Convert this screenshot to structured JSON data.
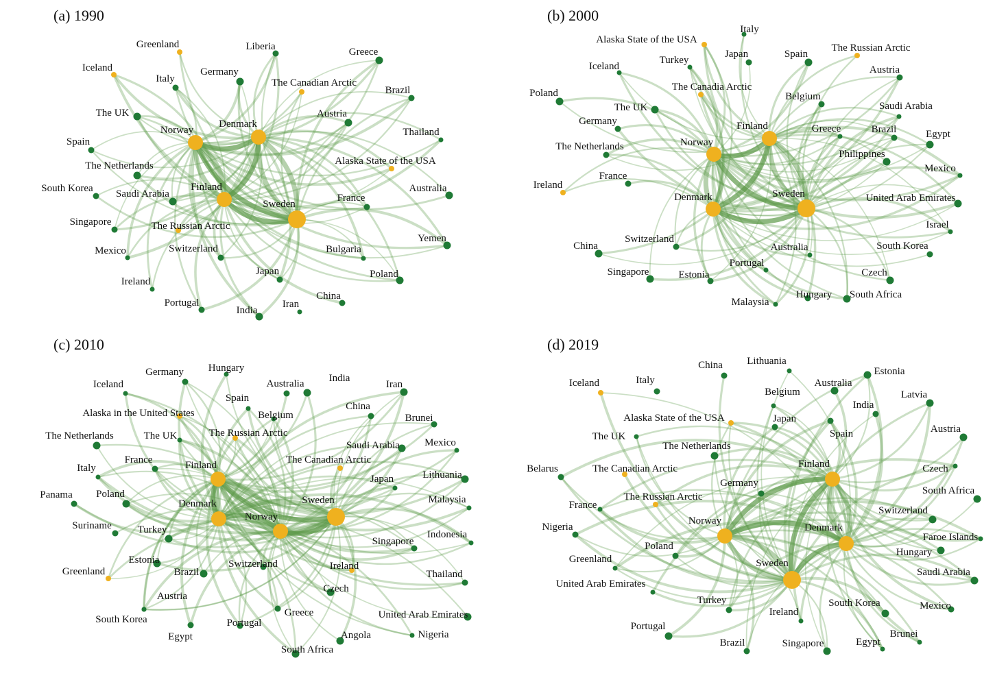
{
  "figure": {
    "colors": {
      "edge": "#5e9a4a",
      "node_green": "#1f7a35",
      "node_gold": "#efb11f"
    },
    "panels": [
      {
        "title": "(a)  1990",
        "hubs": [
          "Norway",
          "Denmark",
          "Finland",
          "Sweden"
        ],
        "nodes": [
          {
            "label": "Greenland",
            "color": "gold"
          },
          {
            "label": "Liberia",
            "color": "green"
          },
          {
            "label": "Greece",
            "color": "green"
          },
          {
            "label": "Iceland",
            "color": "gold"
          },
          {
            "label": "Italy",
            "color": "green"
          },
          {
            "label": "Germany",
            "color": "green"
          },
          {
            "label": "The Canadian Arctic",
            "color": "gold"
          },
          {
            "label": "Brazil",
            "color": "green"
          },
          {
            "label": "The UK",
            "color": "green"
          },
          {
            "label": "Norway",
            "color": "gold"
          },
          {
            "label": "Denmark",
            "color": "gold"
          },
          {
            "label": "Austria",
            "color": "green"
          },
          {
            "label": "Thailand",
            "color": "green"
          },
          {
            "label": "Spain",
            "color": "green"
          },
          {
            "label": "The Netherlands",
            "color": "green"
          },
          {
            "label": "Alaska State of the USA",
            "color": "gold"
          },
          {
            "label": "South Korea",
            "color": "green"
          },
          {
            "label": "Saudi Arabia",
            "color": "green"
          },
          {
            "label": "Finland",
            "color": "gold"
          },
          {
            "label": "France",
            "color": "green"
          },
          {
            "label": "Australia",
            "color": "green"
          },
          {
            "label": "Sweden",
            "color": "gold"
          },
          {
            "label": "Singapore",
            "color": "green"
          },
          {
            "label": "The Russian Arctic",
            "color": "gold"
          },
          {
            "label": "Mexico",
            "color": "green"
          },
          {
            "label": "Switzerland",
            "color": "green"
          },
          {
            "label": "Yemen",
            "color": "green"
          },
          {
            "label": "Bulgaria",
            "color": "green"
          },
          {
            "label": "Japan",
            "color": "green"
          },
          {
            "label": "Poland",
            "color": "green"
          },
          {
            "label": "Ireland",
            "color": "green"
          },
          {
            "label": "Portugal",
            "color": "green"
          },
          {
            "label": "India",
            "color": "green"
          },
          {
            "label": "Iran",
            "color": "green"
          },
          {
            "label": "China",
            "color": "green"
          }
        ]
      },
      {
        "title": "(b) 2000",
        "hubs": [
          "Norway",
          "Finland",
          "Denmark",
          "Sweden"
        ],
        "nodes": [
          {
            "label": "Italy",
            "color": "green"
          },
          {
            "label": "Alaska State of the USA",
            "color": "gold"
          },
          {
            "label": "The Russian Arctic",
            "color": "gold"
          },
          {
            "label": "Turkey",
            "color": "green"
          },
          {
            "label": "Japan",
            "color": "green"
          },
          {
            "label": "Spain",
            "color": "green"
          },
          {
            "label": "Iceland",
            "color": "green"
          },
          {
            "label": "Austria",
            "color": "green"
          },
          {
            "label": "Poland",
            "color": "green"
          },
          {
            "label": "The Canadia Arctic",
            "color": "gold"
          },
          {
            "label": "Belgium",
            "color": "green"
          },
          {
            "label": "The UK",
            "color": "green"
          },
          {
            "label": "Saudi Arabia",
            "color": "green"
          },
          {
            "label": "Germany",
            "color": "green"
          },
          {
            "label": "Finland",
            "color": "gold"
          },
          {
            "label": "Greece",
            "color": "green"
          },
          {
            "label": "Brazil",
            "color": "green"
          },
          {
            "label": "Egypt",
            "color": "green"
          },
          {
            "label": "Norway",
            "color": "gold"
          },
          {
            "label": "The Netherlands",
            "color": "green"
          },
          {
            "label": "Philippines",
            "color": "green"
          },
          {
            "label": "Mexico",
            "color": "green"
          },
          {
            "label": "France",
            "color": "green"
          },
          {
            "label": "Ireland",
            "color": "gold"
          },
          {
            "label": "Denmark",
            "color": "gold"
          },
          {
            "label": "Sweden",
            "color": "gold"
          },
          {
            "label": "United Arab Emirates",
            "color": "green"
          },
          {
            "label": "Israel",
            "color": "green"
          },
          {
            "label": "Switzerland",
            "color": "green"
          },
          {
            "label": "China",
            "color": "green"
          },
          {
            "label": "Australia",
            "color": "green"
          },
          {
            "label": "South Korea",
            "color": "green"
          },
          {
            "label": "Singapore",
            "color": "green"
          },
          {
            "label": "Portugal",
            "color": "green"
          },
          {
            "label": "Estonia",
            "color": "green"
          },
          {
            "label": "Czech",
            "color": "green"
          },
          {
            "label": "Malaysia",
            "color": "green"
          },
          {
            "label": "Hungary",
            "color": "green"
          },
          {
            "label": "South Africa",
            "color": "green"
          }
        ]
      },
      {
        "title": "(c) 2010",
        "hubs": [
          "Finland",
          "Denmark",
          "Norway",
          "Sweden"
        ],
        "nodes": [
          {
            "label": "Hungary",
            "color": "green"
          },
          {
            "label": "Germany",
            "color": "green"
          },
          {
            "label": "India",
            "color": "green"
          },
          {
            "label": "Iceland",
            "color": "green"
          },
          {
            "label": "Australia",
            "color": "green"
          },
          {
            "label": "Iran",
            "color": "green"
          },
          {
            "label": "Spain",
            "color": "green"
          },
          {
            "label": "China",
            "color": "green"
          },
          {
            "label": "Alaska in the United States",
            "color": "gold"
          },
          {
            "label": "Belgium",
            "color": "green"
          },
          {
            "label": "Brunei",
            "color": "green"
          },
          {
            "label": "The Netherlands",
            "color": "green"
          },
          {
            "label": "The UK",
            "color": "green"
          },
          {
            "label": "The Russian Arctic",
            "color": "gold"
          },
          {
            "label": "Saudi Arabia",
            "color": "green"
          },
          {
            "label": "Mexico",
            "color": "green"
          },
          {
            "label": "France",
            "color": "green"
          },
          {
            "label": "The Canadian Arctic",
            "color": "gold"
          },
          {
            "label": "Italy",
            "color": "green"
          },
          {
            "label": "Finland",
            "color": "gold"
          },
          {
            "label": "Lithuania",
            "color": "green"
          },
          {
            "label": "Japan",
            "color": "green"
          },
          {
            "label": "Panama",
            "color": "green"
          },
          {
            "label": "Poland",
            "color": "green"
          },
          {
            "label": "Malaysia",
            "color": "green"
          },
          {
            "label": "Denmark",
            "color": "gold"
          },
          {
            "label": "Sweden",
            "color": "gold"
          },
          {
            "label": "Norway",
            "color": "gold"
          },
          {
            "label": "Suriname",
            "color": "green"
          },
          {
            "label": "Turkey",
            "color": "green"
          },
          {
            "label": "Indonesia",
            "color": "green"
          },
          {
            "label": "Singapore",
            "color": "green"
          },
          {
            "label": "Estonia",
            "color": "green"
          },
          {
            "label": "Greenland",
            "color": "gold"
          },
          {
            "label": "Switzerland",
            "color": "green"
          },
          {
            "label": "Brazil",
            "color": "green"
          },
          {
            "label": "Ireland",
            "color": "gold"
          },
          {
            "label": "Thailand",
            "color": "green"
          },
          {
            "label": "Czech",
            "color": "green"
          },
          {
            "label": "Austria",
            "color": "green"
          },
          {
            "label": "Greece",
            "color": "green"
          },
          {
            "label": "United Arab Emirates",
            "color": "green"
          },
          {
            "label": "South Korea",
            "color": "green"
          },
          {
            "label": "Portugal",
            "color": "green"
          },
          {
            "label": "Angola",
            "color": "green"
          },
          {
            "label": "Nigeria",
            "color": "green"
          },
          {
            "label": "Egypt",
            "color": "green"
          },
          {
            "label": "South Africa",
            "color": "green"
          }
        ]
      },
      {
        "title": "(d) 2019",
        "hubs": [
          "Finland",
          "Norway",
          "Denmark",
          "Sweden"
        ],
        "nodes": [
          {
            "label": "Lithuania",
            "color": "green"
          },
          {
            "label": "China",
            "color": "green"
          },
          {
            "label": "Estonia",
            "color": "green"
          },
          {
            "label": "Iceland",
            "color": "gold"
          },
          {
            "label": "Italy",
            "color": "green"
          },
          {
            "label": "Australia",
            "color": "green"
          },
          {
            "label": "Belgium",
            "color": "green"
          },
          {
            "label": "India",
            "color": "green"
          },
          {
            "label": "Latvia",
            "color": "green"
          },
          {
            "label": "Alaska State of the USA",
            "color": "gold"
          },
          {
            "label": "Japan",
            "color": "green"
          },
          {
            "label": "Austria",
            "color": "green"
          },
          {
            "label": "The UK",
            "color": "green"
          },
          {
            "label": "Spain",
            "color": "green"
          },
          {
            "label": "The Netherlands",
            "color": "green"
          },
          {
            "label": "Finland",
            "color": "gold"
          },
          {
            "label": "Belarus",
            "color": "green"
          },
          {
            "label": "The Canadian Arctic",
            "color": "gold"
          },
          {
            "label": "Czech",
            "color": "green"
          },
          {
            "label": "Germany",
            "color": "green"
          },
          {
            "label": "South Africa",
            "color": "green"
          },
          {
            "label": "France",
            "color": "green"
          },
          {
            "label": "The Russian Arctic",
            "color": "gold"
          },
          {
            "label": "Switzerland",
            "color": "green"
          },
          {
            "label": "Norway",
            "color": "gold"
          },
          {
            "label": "Nigeria",
            "color": "green"
          },
          {
            "label": "Denmark",
            "color": "gold"
          },
          {
            "label": "Faroe Islands",
            "color": "green"
          },
          {
            "label": "Poland",
            "color": "green"
          },
          {
            "label": "Hungary",
            "color": "green"
          },
          {
            "label": "Greenland",
            "color": "green"
          },
          {
            "label": "Sweden",
            "color": "gold"
          },
          {
            "label": "Saudi Arabia",
            "color": "green"
          },
          {
            "label": "United Arab Emirates",
            "color": "green"
          },
          {
            "label": "Turkey",
            "color": "green"
          },
          {
            "label": "South Korea",
            "color": "green"
          },
          {
            "label": "Ireland",
            "color": "green"
          },
          {
            "label": "Mexico",
            "color": "green"
          },
          {
            "label": "Portugal",
            "color": "green"
          },
          {
            "label": "Brunei",
            "color": "green"
          },
          {
            "label": "Brazil",
            "color": "green"
          },
          {
            "label": "Singapore",
            "color": "green"
          },
          {
            "label": "Egypt",
            "color": "green"
          }
        ]
      }
    ]
  }
}
